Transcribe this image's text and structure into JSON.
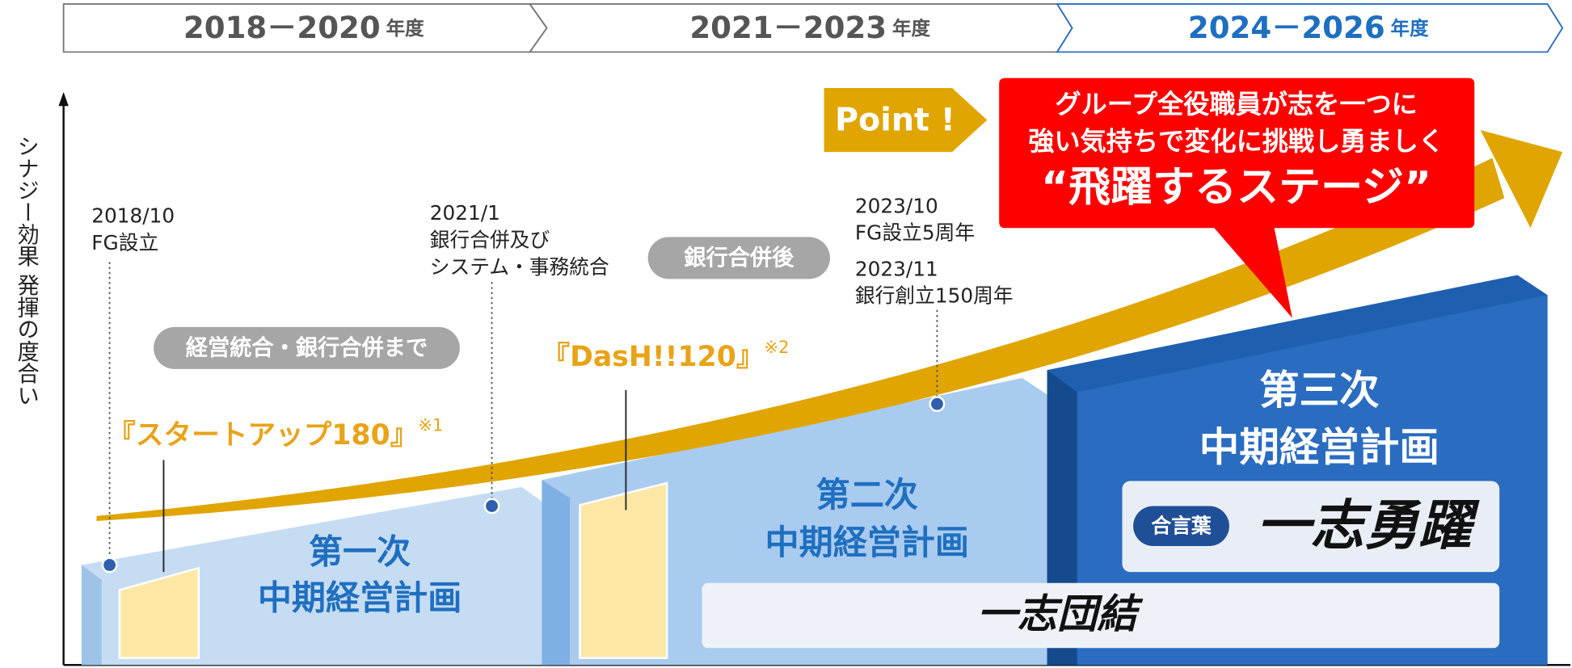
{
  "periods": [
    {
      "years": "2018－2020",
      "unit": "年度"
    },
    {
      "years": "2021－2023",
      "unit": "年度"
    },
    {
      "years": "2024－2026",
      "unit": "年度"
    }
  ],
  "y_axis_label": "シナジー効果 発揮の度合い",
  "events": [
    {
      "date": "2018/10",
      "lines": [
        "FG設立"
      ]
    },
    {
      "date": "2021/1",
      "lines": [
        "銀行合併及び",
        "システム・事務統合"
      ]
    },
    {
      "date": "2023/10",
      "lines": [
        "FG設立5周年"
      ]
    },
    {
      "date": "2023/11",
      "lines": [
        "銀行創立150周年"
      ]
    }
  ],
  "phases": [
    "経営統合・銀行合併まで",
    "銀行合併後"
  ],
  "plans": [
    {
      "name": "第一次",
      "subtitle": "中期経営計画",
      "slogan": "『スタートアップ180』",
      "note": "※1"
    },
    {
      "name": "第二次",
      "subtitle": "中期経営計画",
      "slogan": "『DasH!!120』",
      "note": "※2"
    },
    {
      "name": "第三次",
      "subtitle": "中期経営計画"
    }
  ],
  "point": "Point !",
  "callout": {
    "lines": [
      "グループ全役職員が志を一つに",
      "強い気持ちで変化に挑戦し勇ましく"
    ],
    "headline": "“飛躍するステージ”"
  },
  "motto": {
    "label": "合言葉",
    "text": "一志勇躍"
  },
  "unity": "一志団結"
}
